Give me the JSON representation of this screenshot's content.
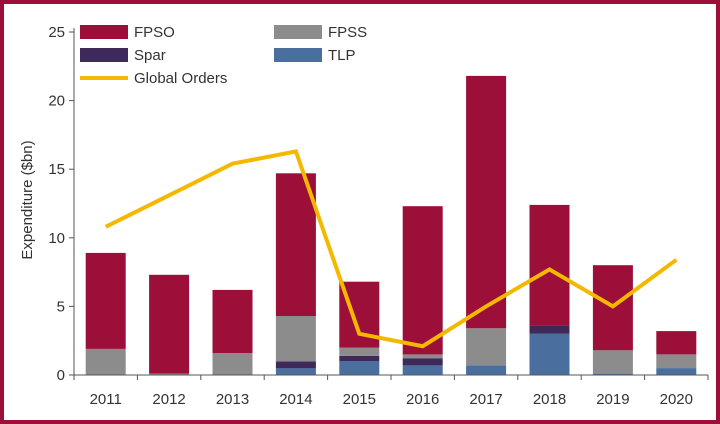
{
  "chart_data": {
    "type": "bar",
    "stacked": true,
    "title": "",
    "xlabel": "",
    "ylabel": "Expenditure ($bn)",
    "ylim": [
      0,
      25
    ],
    "yticks": [
      0,
      5,
      10,
      15,
      20,
      25
    ],
    "categories": [
      "2011",
      "2012",
      "2013",
      "2014",
      "2015",
      "2016",
      "2017",
      "2018",
      "2019",
      "2020"
    ],
    "series": [
      {
        "name": "TLP",
        "kind": "bar",
        "color": "#4a6e9e",
        "values": [
          0,
          0,
          0,
          0.5,
          1.0,
          0.7,
          0.7,
          3.0,
          0.1,
          0.5
        ]
      },
      {
        "name": "Spar",
        "kind": "bar",
        "color": "#3d2a5a",
        "values": [
          0,
          0,
          0,
          0.5,
          0.4,
          0.5,
          0,
          0.6,
          0,
          0
        ]
      },
      {
        "name": "FPSS",
        "kind": "bar",
        "color": "#8c8c8c",
        "values": [
          1.9,
          0.1,
          1.6,
          3.3,
          0.6,
          0.3,
          2.7,
          0,
          1.7,
          1.0
        ]
      },
      {
        "name": "FPSO",
        "kind": "bar",
        "color": "#9b0f38",
        "values": [
          7.0,
          7.2,
          4.6,
          10.4,
          4.8,
          10.8,
          18.4,
          8.8,
          6.2,
          1.7
        ]
      },
      {
        "name": "Global Orders",
        "kind": "line",
        "color": "#f5b800",
        "values": [
          10.8,
          13.1,
          15.4,
          16.3,
          3.0,
          2.1,
          5.0,
          7.7,
          5.0,
          8.4
        ]
      }
    ],
    "legend": {
      "placement": "top-left",
      "entries": [
        "FPSO",
        "FPSS",
        "Spar",
        "TLP",
        "Global Orders"
      ]
    },
    "grid": false
  }
}
